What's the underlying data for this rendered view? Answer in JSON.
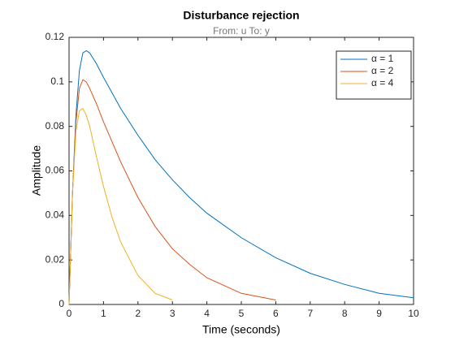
{
  "chart_data": {
    "type": "line",
    "title": "Disturbance rejection",
    "subtitle": "From: u  To: y",
    "x_label": "Time (seconds)",
    "y_label": "Amplitude",
    "x": [
      0,
      0.1,
      0.2,
      0.3,
      0.4,
      0.5,
      0.6,
      0.8,
      1,
      1.25,
      1.5,
      2,
      2.5,
      3,
      3.5,
      4,
      5,
      6,
      7,
      8,
      9,
      10
    ],
    "series": [
      {
        "name": "α = 1",
        "color": "#0072bd",
        "values": [
          0,
          0.05,
          0.085,
          0.105,
          0.113,
          0.114,
          0.113,
          0.108,
          0.102,
          0.095,
          0.088,
          0.076,
          0.065,
          0.056,
          0.048,
          0.041,
          0.03,
          0.021,
          0.014,
          0.009,
          0.005,
          0.003
        ]
      },
      {
        "name": "α = 2",
        "color": "#d95319",
        "values": [
          0,
          0.05,
          0.082,
          0.097,
          0.101,
          0.1,
          0.097,
          0.09,
          0.082,
          0.073,
          0.064,
          0.048,
          0.035,
          0.025,
          0.018,
          0.012,
          0.005,
          0.002,
          null,
          null,
          null,
          null
        ]
      },
      {
        "name": "α = 4",
        "color": "#edb120",
        "values": [
          0,
          0.05,
          0.078,
          0.087,
          0.088,
          0.085,
          0.08,
          0.066,
          0.053,
          0.039,
          0.028,
          0.013,
          0.005,
          0.002,
          null,
          null,
          null,
          null,
          null,
          null,
          null,
          null
        ]
      }
    ],
    "xlim": [
      0,
      10
    ],
    "ylim": [
      0,
      0.12
    ],
    "xticks": [
      0,
      1,
      2,
      3,
      4,
      5,
      6,
      7,
      8,
      9,
      10
    ],
    "yticks": [
      0,
      0.02,
      0.04,
      0.06,
      0.08,
      0.1,
      0.12
    ],
    "grid": false,
    "legend_position": "top-right"
  }
}
